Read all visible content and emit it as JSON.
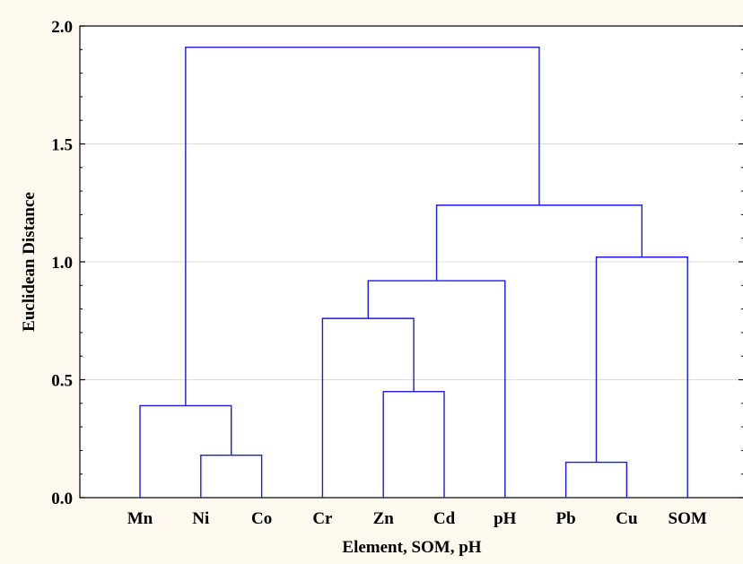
{
  "chart_data": {
    "type": "dendrogram",
    "xlabel": "Element, SOM, pH",
    "ylabel": "Euclidean Distance",
    "ylim": [
      0,
      2.0
    ],
    "yticks": [
      "0.0",
      "0.5",
      "1.0",
      "1.5",
      "2.0"
    ],
    "leaves": [
      "Mn",
      "Ni",
      "Co",
      "Cr",
      "Zn",
      "Cd",
      "pH",
      "Pb",
      "Cu",
      "SOM"
    ],
    "grid": true,
    "merges": [
      {
        "left": "Pb",
        "right": "Cu",
        "height": 0.15
      },
      {
        "left": "Ni",
        "right": "Co",
        "height": 0.18
      },
      {
        "left": "Mn",
        "right": "Ni+Co",
        "height": 0.39
      },
      {
        "left": "Zn",
        "right": "Cd",
        "height": 0.45
      },
      {
        "left": "Cr",
        "right": "Zn+Cd",
        "height": 0.76
      },
      {
        "left": "Cr+Zn+Cd",
        "right": "pH",
        "height": 0.92
      },
      {
        "left": "Pb+Cu",
        "right": "SOM",
        "height": 1.02
      },
      {
        "left": "Cr+Zn+Cd+pH",
        "right": "Pb+Cu+SOM",
        "height": 1.24
      },
      {
        "left": "Mn+Ni+Co",
        "right": "Cr+Zn+Cd+pH+Pb+Cu+SOM",
        "height": 1.91
      }
    ]
  }
}
